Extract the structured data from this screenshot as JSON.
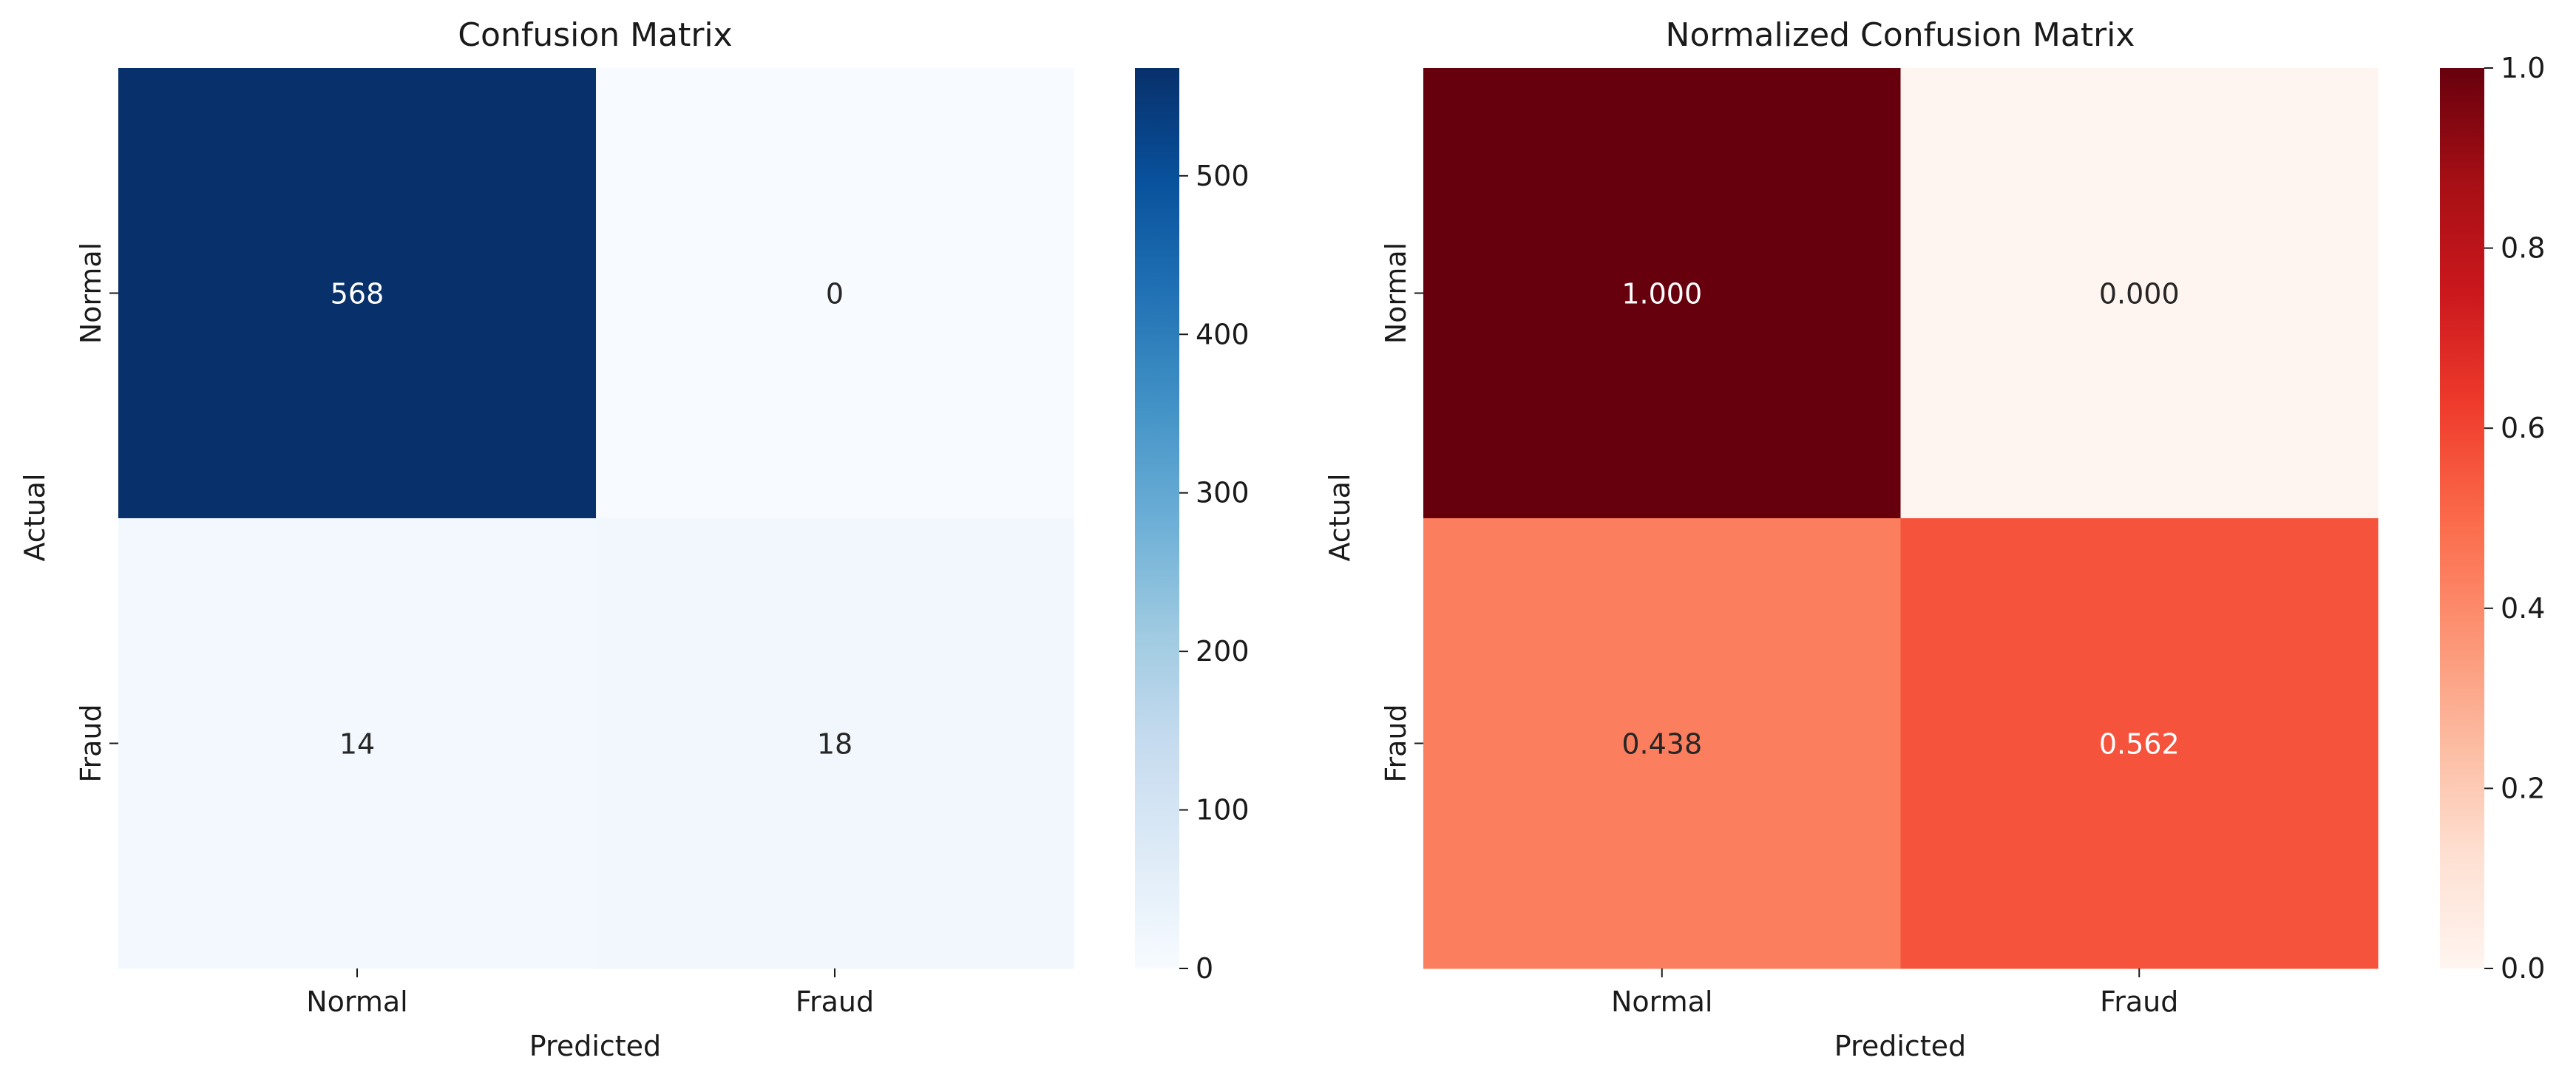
{
  "chart_data": [
    {
      "type": "heatmap",
      "title": "Confusion Matrix",
      "xlabel": "Predicted",
      "ylabel": "Actual",
      "x_categories": [
        "Normal",
        "Fraud"
      ],
      "y_categories": [
        "Normal",
        "Fraud"
      ],
      "values": [
        [
          568,
          0
        ],
        [
          14,
          18
        ]
      ],
      "cell_labels": [
        [
          "568",
          "0"
        ],
        [
          "14",
          "18"
        ]
      ],
      "colormap": "Blues",
      "color_stops": [
        "#f7fbff",
        "#deebf7",
        "#c6dbef",
        "#9ecae1",
        "#6baed6",
        "#4292c6",
        "#2171b5",
        "#08519c",
        "#08306b"
      ],
      "vmin": 0,
      "vmax": 568,
      "colorbar_ticks": [
        0,
        100,
        200,
        300,
        400,
        500
      ],
      "colorbar_tick_labels": [
        "0",
        "100",
        "200",
        "300",
        "400",
        "500"
      ]
    },
    {
      "type": "heatmap",
      "title": "Normalized Confusion Matrix",
      "xlabel": "Predicted",
      "ylabel": "Actual",
      "x_categories": [
        "Normal",
        "Fraud"
      ],
      "y_categories": [
        "Normal",
        "Fraud"
      ],
      "values": [
        [
          1.0,
          0.0
        ],
        [
          0.438,
          0.562
        ]
      ],
      "cell_labels": [
        [
          "1.000",
          "0.000"
        ],
        [
          "0.438",
          "0.562"
        ]
      ],
      "colormap": "Reds",
      "color_stops": [
        "#fff5f0",
        "#fee0d2",
        "#fcbba1",
        "#fc9272",
        "#fb6a4a",
        "#ef3b2c",
        "#cb181d",
        "#a50f15",
        "#67000d"
      ],
      "vmin": 0,
      "vmax": 1,
      "colorbar_ticks": [
        0,
        0.2,
        0.4,
        0.6,
        0.8,
        1.0
      ],
      "colorbar_tick_labels": [
        "0.0",
        "0.2",
        "0.4",
        "0.6",
        "0.8",
        "1.0"
      ]
    }
  ]
}
